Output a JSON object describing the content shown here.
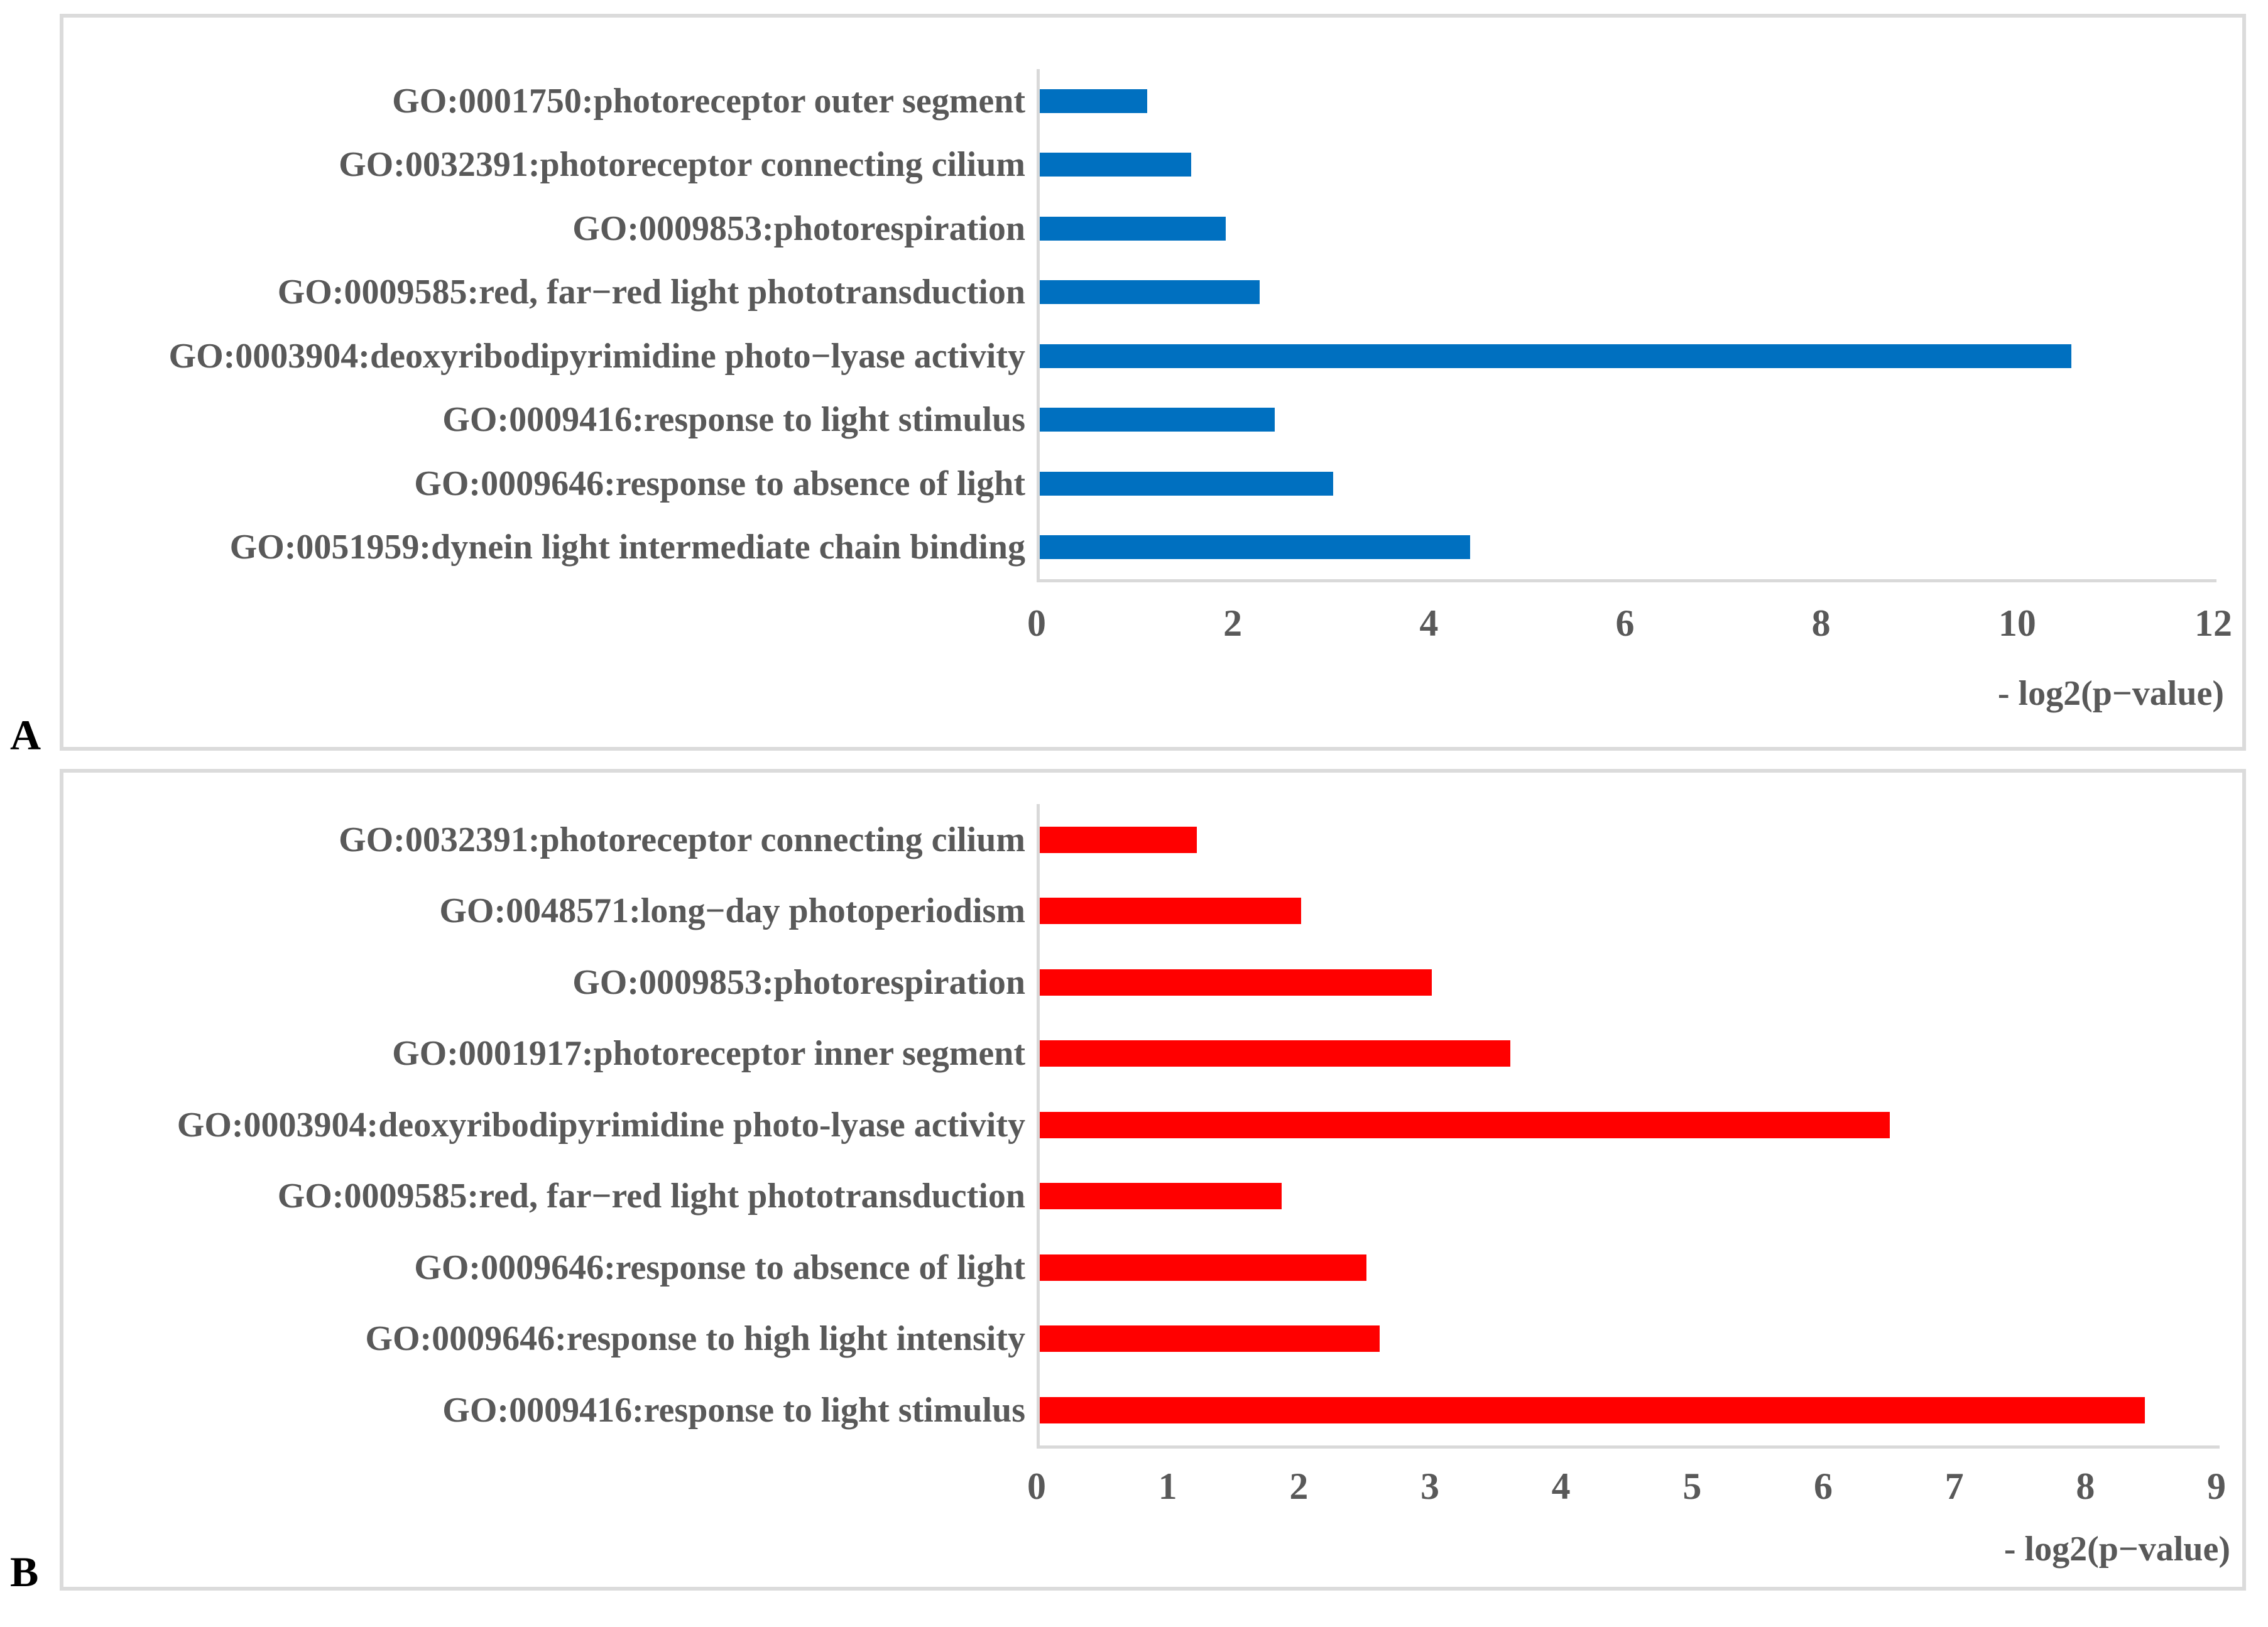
{
  "figure": {
    "panels": [
      {
        "panel_label": "A",
        "bar_color": "#0070C0",
        "axis_label": "- log2(p−value)",
        "x_max": 12,
        "ticks": [
          0,
          2,
          4,
          6,
          8,
          10,
          12
        ],
        "bars": [
          {
            "label": "GO:0001750:photoreceptor outer segment",
            "value": 1.1
          },
          {
            "label": "GO:0032391:photoreceptor connecting cilium",
            "value": 1.55
          },
          {
            "label": "GO:0009853:photorespiration",
            "value": 1.9
          },
          {
            "label": "GO:0009585:red, far−red light phototransduction",
            "value": 2.25
          },
          {
            "label": "GO:0003904:deoxyribodipyrimidine photo−lyase activity",
            "value": 10.55
          },
          {
            "label": "GO:0009416:response to light stimulus",
            "value": 2.4
          },
          {
            "label": "GO:0009646:response to absence of light",
            "value": 3.0
          },
          {
            "label": "GO:0051959:dynein light intermediate chain binding",
            "value": 4.4
          }
        ]
      },
      {
        "panel_label": "B",
        "bar_color": "#FF0000",
        "axis_label": "- log2(p−value)",
        "x_max": 9,
        "ticks": [
          0,
          1,
          2,
          3,
          4,
          5,
          6,
          7,
          8,
          9
        ],
        "bars": [
          {
            "label": "GO:0032391:photoreceptor connecting cilium",
            "value": 1.2
          },
          {
            "label": "GO:0048571:long−day photoperiodism",
            "value": 2.0
          },
          {
            "label": "GO:0009853:photorespiration",
            "value": 3.0
          },
          {
            "label": "GO:0001917:photoreceptor inner segment",
            "value": 3.6
          },
          {
            "label": "GO:0003904:deoxyribodipyrimidine photo-lyase activity",
            "value": 6.5
          },
          {
            "label": "GO:0009585:red, far−red light phototransduction",
            "value": 1.85
          },
          {
            "label": "GO:0009646:response to absence of light",
            "value": 2.5
          },
          {
            "label": "GO:0009646:response to high light intensity",
            "value": 2.6
          },
          {
            "label": "GO:0009416:response to light stimulus",
            "value": 8.45
          }
        ]
      }
    ]
  },
  "chart_data": [
    {
      "type": "bar",
      "orientation": "horizontal",
      "title": "",
      "xlabel": "- log2(p−value)",
      "ylabel": "",
      "xlim": [
        0,
        12
      ],
      "x_ticks": [
        0,
        2,
        4,
        6,
        8,
        10,
        12
      ],
      "bar_color": "#0070C0",
      "grid": false,
      "legend": false,
      "categories": [
        "GO:0001750:photoreceptor outer segment",
        "GO:0032391:photoreceptor connecting cilium",
        "GO:0009853:photorespiration",
        "GO:0009585:red, far−red light phototransduction",
        "GO:0003904:deoxyribodipyrimidine photo−lyase activity",
        "GO:0009416:response to light stimulus",
        "GO:0009646:response to absence of light",
        "GO:0051959:dynein light intermediate chain binding"
      ],
      "values": [
        1.1,
        1.55,
        1.9,
        2.25,
        10.55,
        2.4,
        3.0,
        4.4
      ]
    },
    {
      "type": "bar",
      "orientation": "horizontal",
      "title": "",
      "xlabel": "- log2(p−value)",
      "ylabel": "",
      "xlim": [
        0,
        9
      ],
      "x_ticks": [
        0,
        1,
        2,
        3,
        4,
        5,
        6,
        7,
        8,
        9
      ],
      "bar_color": "#FF0000",
      "grid": false,
      "legend": false,
      "categories": [
        "GO:0032391:photoreceptor connecting cilium",
        "GO:0048571:long−day photoperiodism",
        "GO:0009853:photorespiration",
        "GO:0001917:photoreceptor inner segment",
        "GO:0003904:deoxyribodipyrimidine photo-lyase activity",
        "GO:0009585:red, far−red light phototransduction",
        "GO:0009646:response to absence of light",
        "GO:0009646:response to high light intensity",
        "GO:0009416:response to light stimulus"
      ],
      "values": [
        1.2,
        2.0,
        3.0,
        3.6,
        6.5,
        1.85,
        2.5,
        2.6,
        8.45
      ]
    }
  ]
}
